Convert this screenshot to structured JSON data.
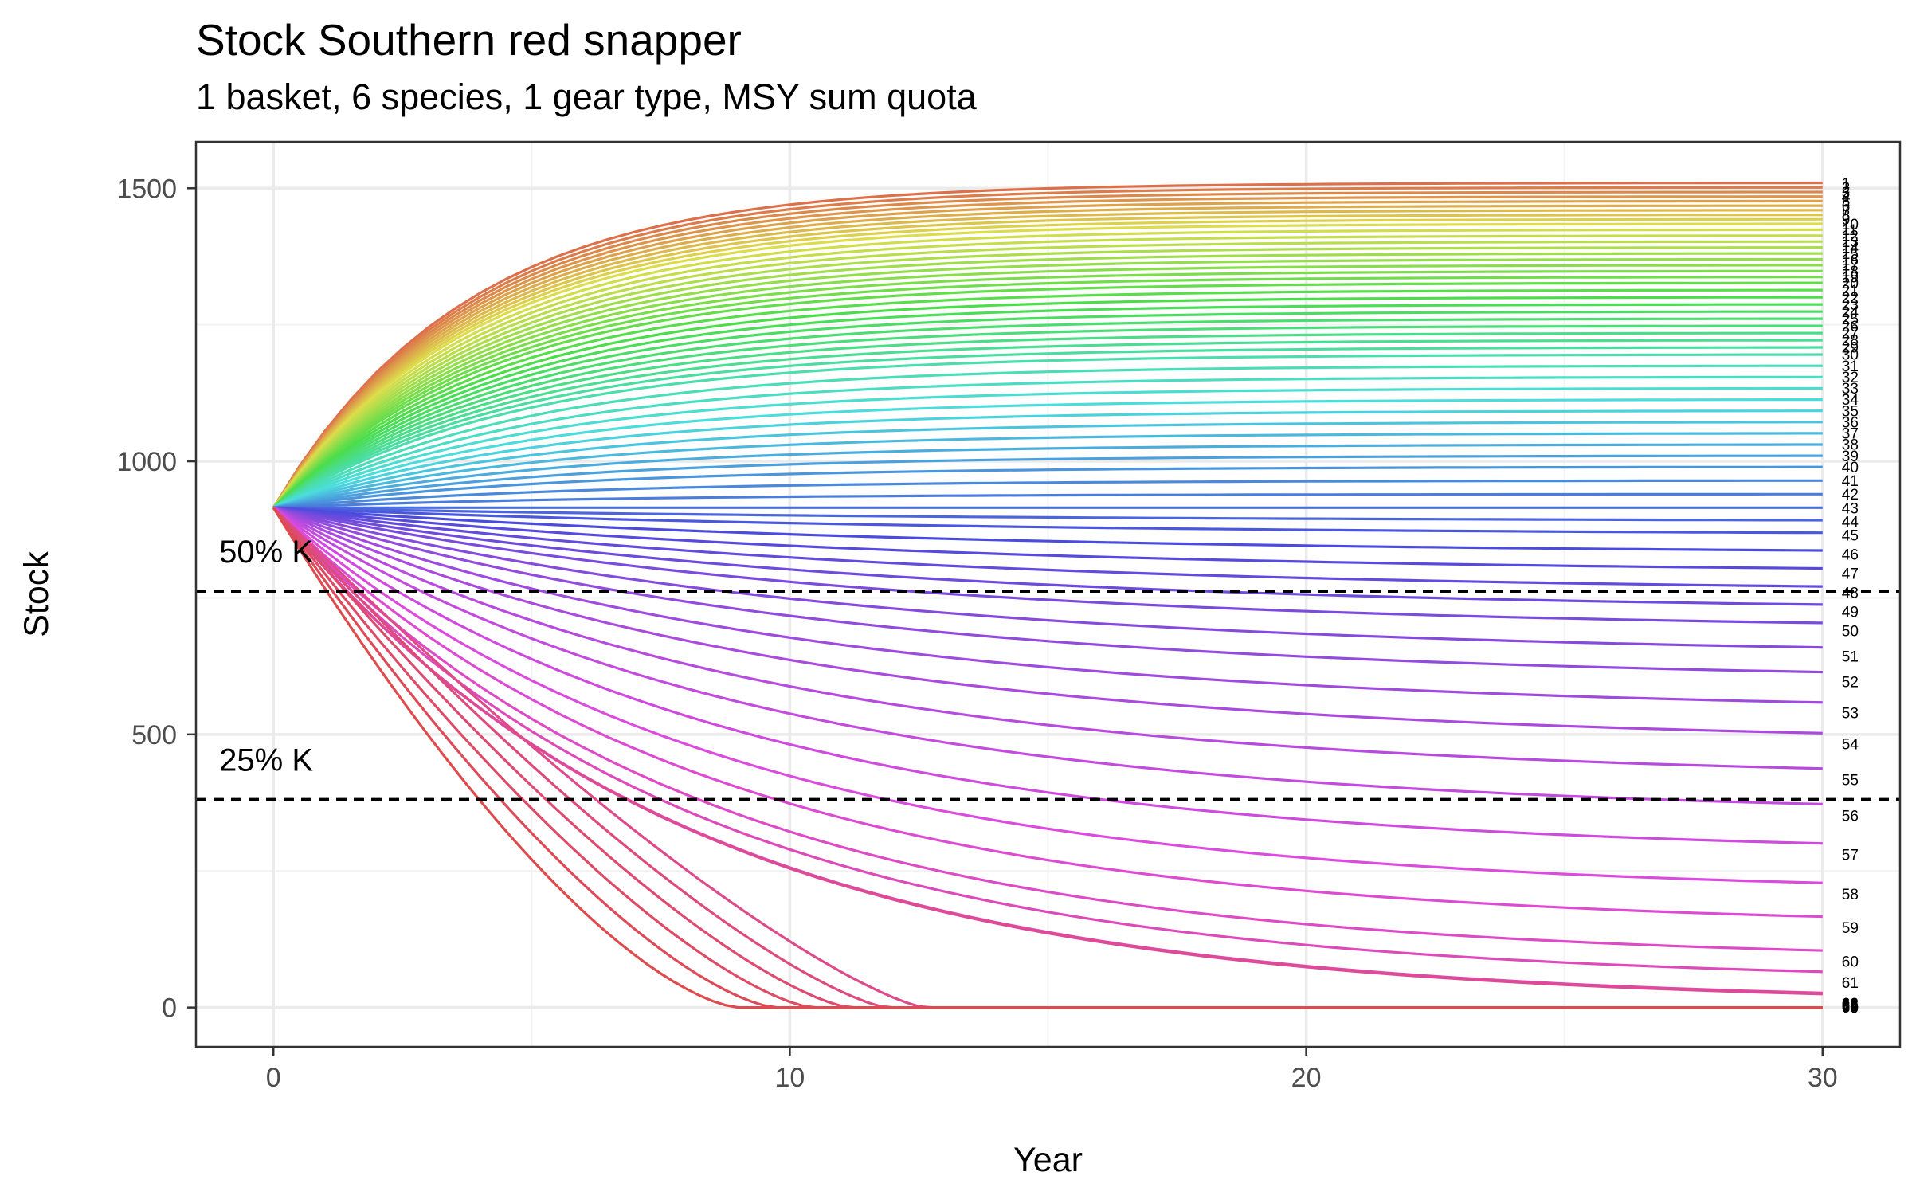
{
  "chart_data": {
    "type": "line",
    "title": "Stock Southern red snapper",
    "subtitle": "1 basket, 6 species, 1 gear type, MSY sum quota",
    "xlabel": "Year",
    "ylabel": "Stock",
    "xlim": [
      -1.5,
      31.5
    ],
    "ylim": [
      -72,
      1585
    ],
    "x_ticks": [
      0,
      10,
      20,
      30
    ],
    "y_ticks": [
      0,
      500,
      1000,
      1500
    ],
    "x_minor_ticks": [
      5,
      15,
      25
    ],
    "y_minor_ticks": [
      250,
      750,
      1250
    ],
    "grid": true,
    "n_series": 70,
    "series_labels": [
      "1",
      "2",
      "3",
      "4",
      "5",
      "6",
      "7",
      "8",
      "9",
      "10",
      "11",
      "12",
      "13",
      "14",
      "15",
      "16",
      "17",
      "18",
      "19",
      "20",
      "21",
      "22",
      "23",
      "24",
      "25",
      "26",
      "27",
      "28",
      "29",
      "30",
      "31",
      "32",
      "33",
      "34",
      "35",
      "36",
      "37",
      "38",
      "39",
      "40",
      "41",
      "42",
      "43",
      "44",
      "45",
      "46",
      "47",
      "48",
      "49",
      "50",
      "51",
      "52",
      "53",
      "54",
      "55",
      "56",
      "57",
      "58",
      "59",
      "60",
      "61",
      "62",
      "63",
      "64",
      "65",
      "66",
      "67",
      "68",
      "69",
      "70"
    ],
    "x": [
      0,
      30
    ],
    "start_value": 915,
    "year30_values_sample": {
      "1": 1510,
      "10": 1435,
      "20": 1327,
      "30": 1196,
      "40": 990,
      "45": 865,
      "48": 760,
      "50": 690,
      "52": 597,
      "54": 483,
      "56": 352,
      "58": 208,
      "60": 85,
      "62": 8,
      "70": 0
    },
    "reference_lines": [
      {
        "label": "50% K",
        "y": 762,
        "style": "dashed",
        "color": "#000000"
      },
      {
        "label": "25% K",
        "y": 381,
        "style": "dashed",
        "color": "#000000"
      }
    ],
    "colors": [
      "#F8766D",
      "#7CAE00",
      "#00BFC4",
      "#C77CFF"
    ],
    "legend": "none (series labeled at right end of lines)"
  }
}
